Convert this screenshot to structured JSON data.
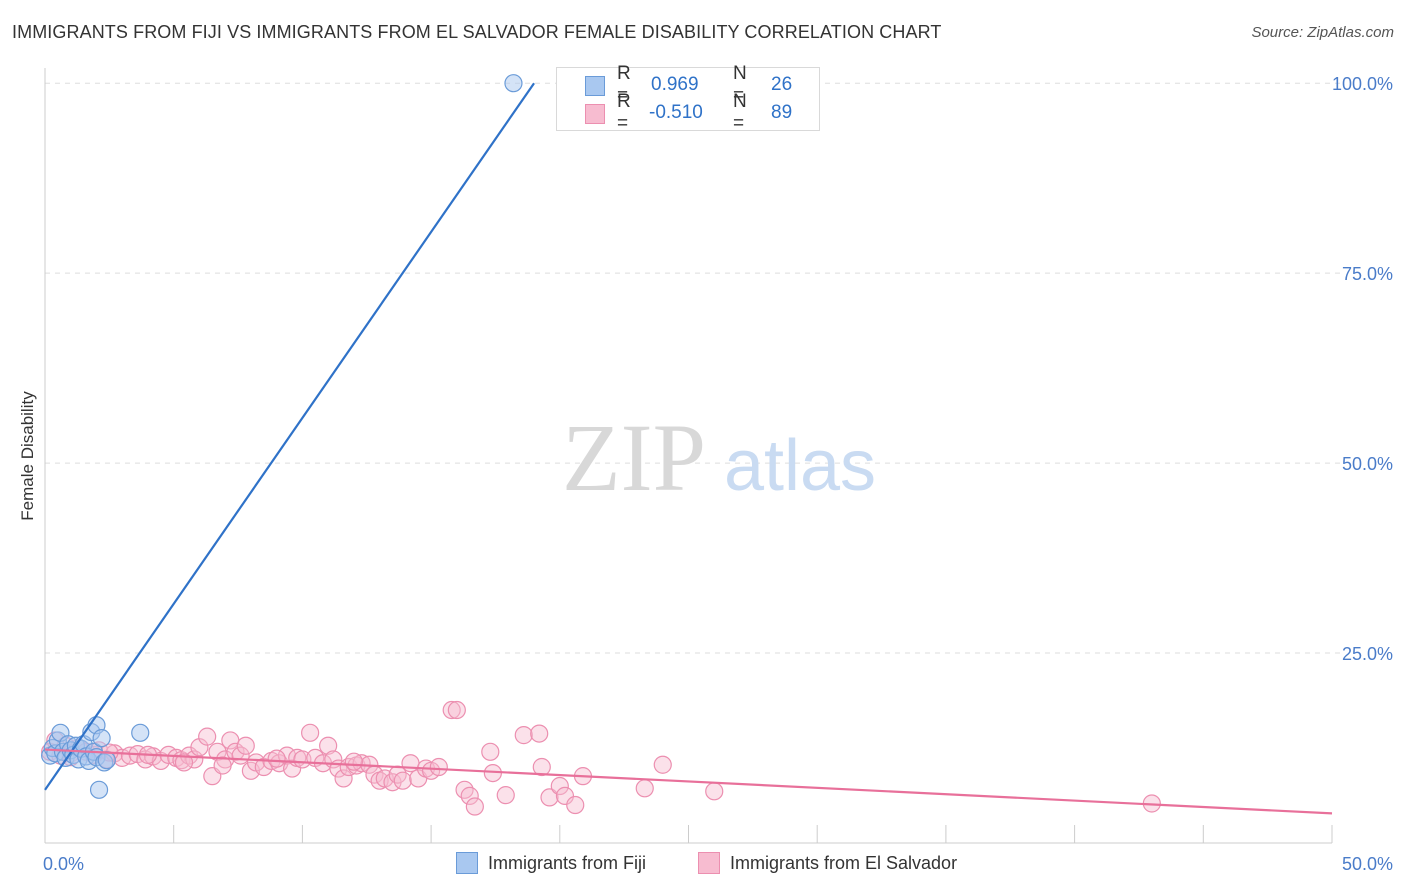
{
  "header": {
    "title": "IMMIGRANTS FROM FIJI VS IMMIGRANTS FROM EL SALVADOR FEMALE DISABILITY CORRELATION CHART",
    "source": "Source: ZipAtlas.com"
  },
  "watermark": {
    "zip": "ZIP",
    "atlas": "atlas"
  },
  "legend": {
    "fiji": {
      "r_label": "R =",
      "r_value": "0.969",
      "n_label": "N =",
      "n_value": "26"
    },
    "elsalvador": {
      "r_label": "R =",
      "r_value": "-0.510",
      "n_label": "N =",
      "n_value": "89"
    }
  },
  "colors": {
    "fiji_fill": "#a9c8f0",
    "fiji_stroke": "#6a9bd8",
    "fiji_line": "#2f72c8",
    "es_fill": "#f7bcd0",
    "es_stroke": "#ec8fb0",
    "es_line": "#e8709a",
    "tick_label": "#4a7cc9",
    "grid": "#dddddd"
  },
  "chart_data": {
    "type": "scatter",
    "title": "IMMIGRANTS FROM FIJI VS IMMIGRANTS FROM EL SALVADOR FEMALE DISABILITY CORRELATION CHART",
    "xlabel": "",
    "ylabel": "Female Disability",
    "xlim": [
      0,
      50
    ],
    "ylim": [
      0,
      102
    ],
    "x_tick_labels": [
      "0.0%",
      "50.0%"
    ],
    "y_ticks": [
      25,
      50,
      75,
      100
    ],
    "y_tick_labels": [
      "25.0%",
      "50.0%",
      "75.0%",
      "100.0%"
    ],
    "grid": true,
    "legend_position": "bottom",
    "series": [
      {
        "name": "Immigrants from Fiji",
        "r": 0.969,
        "n": 26,
        "trend": {
          "x0": 0.0,
          "y0": 7.0,
          "x1": 19.0,
          "y1": 100.0
        },
        "points": [
          [
            0.2,
            11.5
          ],
          [
            0.3,
            12.5
          ],
          [
            0.4,
            11.8
          ],
          [
            0.5,
            13.5
          ],
          [
            0.6,
            14.5
          ],
          [
            0.7,
            12.0
          ],
          [
            0.8,
            11.2
          ],
          [
            0.9,
            13.0
          ],
          [
            1.0,
            12.2
          ],
          [
            1.1,
            11.6
          ],
          [
            1.2,
            12.8
          ],
          [
            1.3,
            11.0
          ],
          [
            1.4,
            12.4
          ],
          [
            1.5,
            13.0
          ],
          [
            1.6,
            11.4
          ],
          [
            1.7,
            10.8
          ],
          [
            1.8,
            14.6
          ],
          [
            1.9,
            12.0
          ],
          [
            2.0,
            11.3
          ],
          [
            2.1,
            7.0
          ],
          [
            2.0,
            15.5
          ],
          [
            2.2,
            13.8
          ],
          [
            2.3,
            10.6
          ],
          [
            2.4,
            10.9
          ],
          [
            3.7,
            14.5
          ],
          [
            18.2,
            100.0
          ]
        ]
      },
      {
        "name": "Immigrants from El Salvador",
        "r": -0.51,
        "n": 89,
        "trend": {
          "x0": 0.0,
          "y0": 12.3,
          "x1": 50.0,
          "y1": 3.9
        },
        "points": [
          [
            0.2,
            12.0
          ],
          [
            0.4,
            13.5
          ],
          [
            0.6,
            11.5
          ],
          [
            0.8,
            12.8
          ],
          [
            1.0,
            11.8
          ],
          [
            1.3,
            12.5
          ],
          [
            1.6,
            12.0
          ],
          [
            1.9,
            11.6
          ],
          [
            2.1,
            12.2
          ],
          [
            2.4,
            11.0
          ],
          [
            2.7,
            11.8
          ],
          [
            3.0,
            11.2
          ],
          [
            3.3,
            11.5
          ],
          [
            3.6,
            11.7
          ],
          [
            3.9,
            11.0
          ],
          [
            4.2,
            11.4
          ],
          [
            4.5,
            10.8
          ],
          [
            4.8,
            11.6
          ],
          [
            5.1,
            11.2
          ],
          [
            5.3,
            10.9
          ],
          [
            5.6,
            11.5
          ],
          [
            5.8,
            11.0
          ],
          [
            6.0,
            12.6
          ],
          [
            6.3,
            14.0
          ],
          [
            6.5,
            8.8
          ],
          [
            6.7,
            12.0
          ],
          [
            7.0,
            11.0
          ],
          [
            7.2,
            13.5
          ],
          [
            7.4,
            12.0
          ],
          [
            7.6,
            11.5
          ],
          [
            7.8,
            12.8
          ],
          [
            8.0,
            9.5
          ],
          [
            8.2,
            10.6
          ],
          [
            8.5,
            10.0
          ],
          [
            8.8,
            10.8
          ],
          [
            9.1,
            10.5
          ],
          [
            9.4,
            11.5
          ],
          [
            9.6,
            9.8
          ],
          [
            9.8,
            11.2
          ],
          [
            10.0,
            11.0
          ],
          [
            10.3,
            14.5
          ],
          [
            10.5,
            11.2
          ],
          [
            10.8,
            10.5
          ],
          [
            11.0,
            12.8
          ],
          [
            11.2,
            11.0
          ],
          [
            11.4,
            9.8
          ],
          [
            11.6,
            8.5
          ],
          [
            11.8,
            10.0
          ],
          [
            12.1,
            10.2
          ],
          [
            12.3,
            10.5
          ],
          [
            12.6,
            10.3
          ],
          [
            12.8,
            9.0
          ],
          [
            13.0,
            8.2
          ],
          [
            13.2,
            8.5
          ],
          [
            13.5,
            8.0
          ],
          [
            13.7,
            9.0
          ],
          [
            13.9,
            8.2
          ],
          [
            14.2,
            10.5
          ],
          [
            14.5,
            8.5
          ],
          [
            14.8,
            9.8
          ],
          [
            15.0,
            9.5
          ],
          [
            15.3,
            10.0
          ],
          [
            15.8,
            17.5
          ],
          [
            16.0,
            17.5
          ],
          [
            16.3,
            7.0
          ],
          [
            16.5,
            6.2
          ],
          [
            16.7,
            4.8
          ],
          [
            17.3,
            12.0
          ],
          [
            17.4,
            9.2
          ],
          [
            17.9,
            6.3
          ],
          [
            18.6,
            14.2
          ],
          [
            19.2,
            14.4
          ],
          [
            19.3,
            10.0
          ],
          [
            19.6,
            6.0
          ],
          [
            20.0,
            7.5
          ],
          [
            20.2,
            6.2
          ],
          [
            20.6,
            5.0
          ],
          [
            20.9,
            8.8
          ],
          [
            23.3,
            7.2
          ],
          [
            24.0,
            10.3
          ],
          [
            26.0,
            6.8
          ],
          [
            43.0,
            5.2
          ],
          [
            1.0,
            11.3
          ],
          [
            2.5,
            11.9
          ],
          [
            4.0,
            11.6
          ],
          [
            5.4,
            10.6
          ],
          [
            6.9,
            10.2
          ],
          [
            9.0,
            11.1
          ],
          [
            12.0,
            10.7
          ]
        ]
      }
    ]
  },
  "axes": {
    "ylabel": "Female Disability",
    "x_left": "0.0%",
    "x_right": "50.0%",
    "y_ticks": [
      "25.0%",
      "50.0%",
      "75.0%",
      "100.0%"
    ]
  },
  "bottom_legend": {
    "fiji": "Immigrants from Fiji",
    "elsalvador": "Immigrants from El Salvador"
  }
}
